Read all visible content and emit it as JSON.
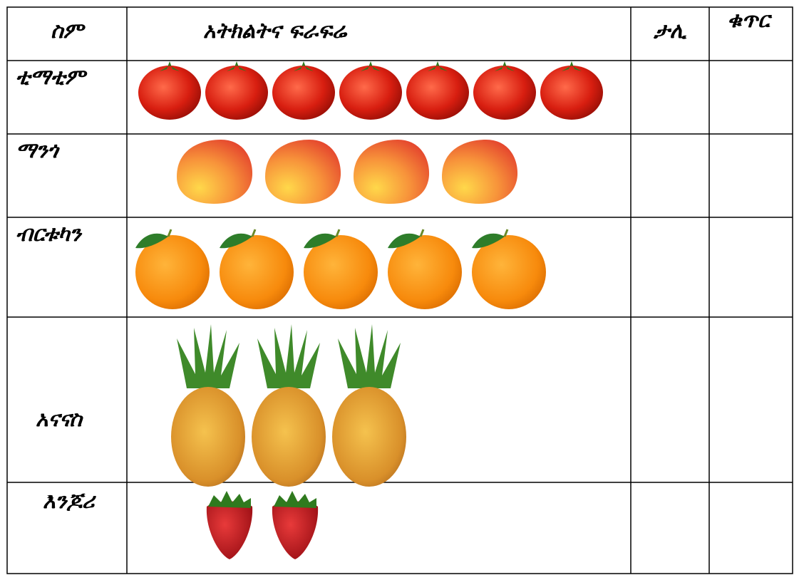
{
  "table": {
    "headers": [
      "ስም",
      "አትክልትና ፍራፍሬ",
      "ታሊ",
      "ቁጥር"
    ],
    "rows": [
      {
        "name": "ቲማቲም",
        "count": 7
      },
      {
        "name": "ማንጎ",
        "count": 4
      },
      {
        "name": "ብርቱካን",
        "count": 5
      },
      {
        "name": "አናናስ",
        "count": 3
      },
      {
        "name": "እንጆሪ",
        "count": 2
      }
    ]
  }
}
